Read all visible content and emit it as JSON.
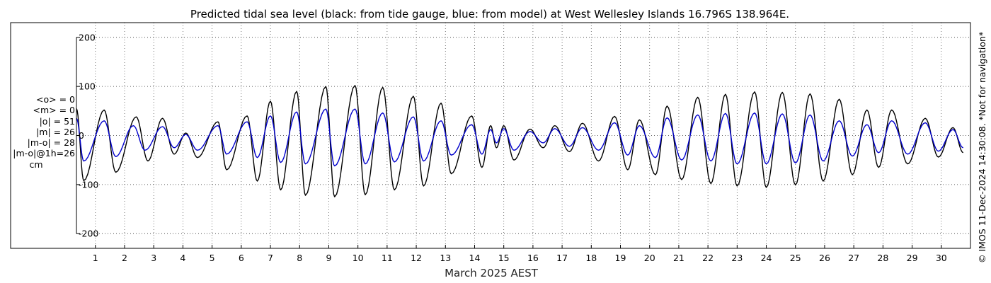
{
  "chart_data": {
    "type": "line",
    "title": "Predicted tidal sea level (black: from tide gauge, blue: from model) at West Wellesley Islands 16.796S 138.964E.",
    "xlabel": "March 2025 AEST",
    "ylabel": "",
    "xlim": [
      0.35,
      31.0
    ],
    "ylim": [
      -230,
      230
    ],
    "yticks": [
      -200,
      -100,
      0,
      100,
      200
    ],
    "xticks": [
      1,
      2,
      3,
      4,
      5,
      6,
      7,
      8,
      9,
      10,
      11,
      12,
      13,
      14,
      15,
      16,
      17,
      18,
      19,
      20,
      21,
      22,
      23,
      24,
      25,
      26,
      27,
      28,
      29,
      30
    ],
    "grid": true,
    "series": [
      {
        "color": "#000000",
        "peaks": [
          [
            0.35,
            55
          ],
          [
            0.6,
            -92
          ],
          [
            1.3,
            52
          ],
          [
            1.7,
            -75
          ],
          [
            2.4,
            38
          ],
          [
            2.8,
            -52
          ],
          [
            3.3,
            35
          ],
          [
            3.7,
            -38
          ],
          [
            4.1,
            5
          ],
          [
            4.5,
            -45
          ],
          [
            5.2,
            28
          ],
          [
            5.5,
            -70
          ],
          [
            6.2,
            40
          ],
          [
            6.55,
            -93
          ],
          [
            7.0,
            70
          ],
          [
            7.35,
            -111
          ],
          [
            7.9,
            90
          ],
          [
            8.2,
            -122
          ],
          [
            8.9,
            100
          ],
          [
            9.2,
            -125
          ],
          [
            9.9,
            102
          ],
          [
            10.25,
            -121
          ],
          [
            10.85,
            98
          ],
          [
            11.25,
            -111
          ],
          [
            11.9,
            80
          ],
          [
            12.25,
            -103
          ],
          [
            12.85,
            66
          ],
          [
            13.2,
            -78
          ],
          [
            13.9,
            40
          ],
          [
            14.25,
            -65
          ],
          [
            14.55,
            20
          ],
          [
            14.75,
            -25
          ],
          [
            15.0,
            20
          ],
          [
            15.35,
            -50
          ],
          [
            15.9,
            13
          ],
          [
            16.35,
            -25
          ],
          [
            16.75,
            20
          ],
          [
            17.25,
            -33
          ],
          [
            17.7,
            25
          ],
          [
            18.25,
            -52
          ],
          [
            18.8,
            39
          ],
          [
            19.25,
            -70
          ],
          [
            19.65,
            32
          ],
          [
            20.2,
            -80
          ],
          [
            20.6,
            60
          ],
          [
            21.1,
            -90
          ],
          [
            21.65,
            78
          ],
          [
            22.1,
            -98
          ],
          [
            22.6,
            84
          ],
          [
            23.0,
            -103
          ],
          [
            23.6,
            89
          ],
          [
            24.0,
            -106
          ],
          [
            24.55,
            88
          ],
          [
            25.0,
            -101
          ],
          [
            25.5,
            85
          ],
          [
            25.95,
            -93
          ],
          [
            26.5,
            74
          ],
          [
            26.95,
            -80
          ],
          [
            27.45,
            52
          ],
          [
            27.85,
            -65
          ],
          [
            28.3,
            52
          ],
          [
            28.85,
            -58
          ],
          [
            29.45,
            35
          ],
          [
            29.9,
            -44
          ],
          [
            30.4,
            16
          ],
          [
            30.75,
            -35
          ]
        ]
      },
      {
        "color": "#0000cc",
        "peaks": [
          [
            0.35,
            35
          ],
          [
            0.6,
            -52
          ],
          [
            1.3,
            30
          ],
          [
            1.7,
            -43
          ],
          [
            2.3,
            20
          ],
          [
            2.7,
            -30
          ],
          [
            3.3,
            18
          ],
          [
            3.7,
            -25
          ],
          [
            4.1,
            2
          ],
          [
            4.5,
            -30
          ],
          [
            5.2,
            20
          ],
          [
            5.5,
            -38
          ],
          [
            6.2,
            28
          ],
          [
            6.55,
            -45
          ],
          [
            7.0,
            40
          ],
          [
            7.35,
            -55
          ],
          [
            7.9,
            48
          ],
          [
            8.2,
            -58
          ],
          [
            8.9,
            54
          ],
          [
            9.2,
            -62
          ],
          [
            9.9,
            54
          ],
          [
            10.25,
            -58
          ],
          [
            10.85,
            46
          ],
          [
            11.25,
            -54
          ],
          [
            11.9,
            38
          ],
          [
            12.25,
            -52
          ],
          [
            12.85,
            30
          ],
          [
            13.2,
            -40
          ],
          [
            13.9,
            22
          ],
          [
            14.25,
            -38
          ],
          [
            14.55,
            12
          ],
          [
            14.75,
            -15
          ],
          [
            15.0,
            14
          ],
          [
            15.35,
            -30
          ],
          [
            15.9,
            8
          ],
          [
            16.35,
            -15
          ],
          [
            16.75,
            14
          ],
          [
            17.25,
            -22
          ],
          [
            17.7,
            16
          ],
          [
            18.25,
            -30
          ],
          [
            18.8,
            26
          ],
          [
            19.25,
            -40
          ],
          [
            19.65,
            20
          ],
          [
            20.2,
            -45
          ],
          [
            20.6,
            36
          ],
          [
            21.1,
            -50
          ],
          [
            21.65,
            42
          ],
          [
            22.1,
            -52
          ],
          [
            22.6,
            45
          ],
          [
            23.0,
            -58
          ],
          [
            23.6,
            46
          ],
          [
            24.0,
            -58
          ],
          [
            24.55,
            44
          ],
          [
            25.0,
            -56
          ],
          [
            25.5,
            42
          ],
          [
            25.95,
            -52
          ],
          [
            26.5,
            30
          ],
          [
            26.95,
            -42
          ],
          [
            27.45,
            22
          ],
          [
            27.85,
            -35
          ],
          [
            28.3,
            30
          ],
          [
            28.85,
            -38
          ],
          [
            29.45,
            26
          ],
          [
            29.9,
            -32
          ],
          [
            30.4,
            12
          ],
          [
            30.75,
            -25
          ]
        ]
      }
    ]
  },
  "stats": {
    "mean_obs": "<o> = 0",
    "mean_model": "<m> = 0",
    "abs_obs": "|o| = 51",
    "abs_model": "|m| = 26",
    "abs_diff": "|m-o| = 28",
    "abs_diff_1h": "|m-o|@1h=26",
    "unit": "cm"
  },
  "credit": "© IMOS 11-Dec-2024 14:30:08. *Not for navigation*",
  "colors": {
    "gauge": "#000000",
    "model": "#0000cc",
    "grid": "#333333",
    "frame": "#000000"
  }
}
